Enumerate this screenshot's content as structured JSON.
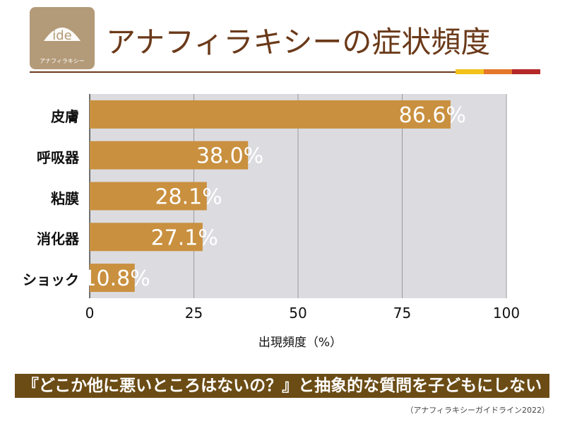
{
  "header": {
    "logo_text": "アナフィラキシー",
    "title": "アナフィラキシーの症状頻度"
  },
  "chart_data": {
    "type": "bar",
    "orientation": "horizontal",
    "categories": [
      "皮膚",
      "呼吸器",
      "粘膜",
      "消化器",
      "ショック"
    ],
    "values": [
      86.6,
      38.0,
      28.1,
      27.1,
      10.8
    ],
    "value_labels": [
      "86.6%",
      "38.0%",
      "28.1%",
      "27.1%",
      "10.8%"
    ],
    "xlabel": "出現頻度（%）",
    "xlim": [
      0,
      100
    ],
    "xticks": [
      "0",
      "25",
      "50",
      "75",
      "100"
    ],
    "grid": "vertical",
    "bar_color": "#c9903f",
    "plot_background": "#dcdce0"
  },
  "banner": {
    "text": "『どこか他に悪いところはないの？』と抽象的な質問を子どもにしない"
  },
  "footer": {
    "source": "（アナフィラキシーガイドライン2022）"
  },
  "colors": {
    "brand_brown": "#6b3a1a",
    "accent_yellow": "#f2c21a",
    "accent_orange": "#e5772a",
    "accent_red": "#b5282a"
  }
}
